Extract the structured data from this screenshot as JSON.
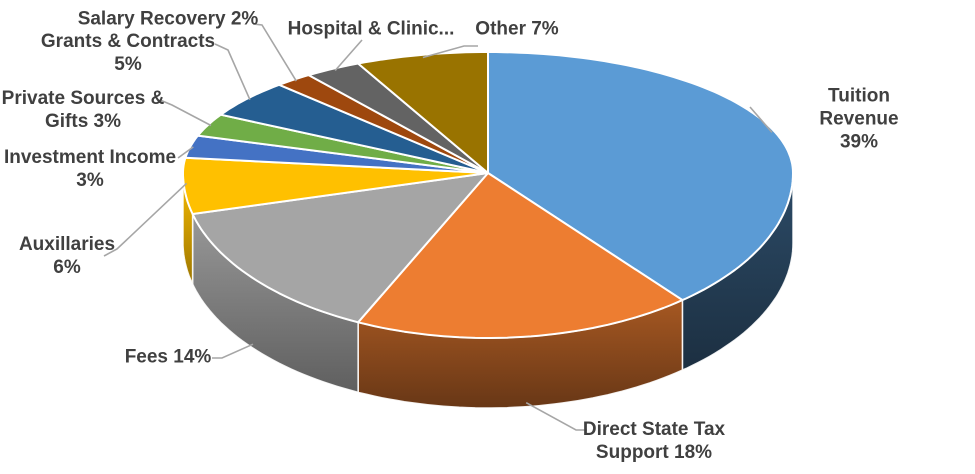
{
  "page": {
    "background": "#FFFFFF"
  },
  "chart_data": {
    "type": "pie",
    "style": "3d-pie",
    "legend": "none",
    "units": "percent",
    "total": 100,
    "direction": "clockwise",
    "start_angle_deg": 0,
    "label_color": "#404040",
    "leader_line_color": "#A6A6A6",
    "slices": [
      {
        "label": "Tuition Revenue",
        "value": 39,
        "display": "Tuition Revenue 39%",
        "color": "#5B9BD5"
      },
      {
        "label": "Direct State Tax Support",
        "value": 18,
        "display": "Direct State Tax\nSupport 18%",
        "color": "#ED7D31"
      },
      {
        "label": "Fees",
        "value": 14,
        "display": "Fees 14%",
        "color": "#A5A5A5"
      },
      {
        "label": "Auxillaries",
        "value": 6,
        "display": "Auxillaries\n6%",
        "color": "#FFC000"
      },
      {
        "label": "Investment Income",
        "value": 3,
        "display": "Investment Income\n3%",
        "color": "#4472C4"
      },
      {
        "label": "Private Sources & Gifts",
        "value": 3,
        "display": "Private Sources &\nGifts 3%",
        "color": "#70AD47"
      },
      {
        "label": "Grants & Contracts",
        "value": 5,
        "display": "Grants & Contracts\n5%",
        "color": "#255E91"
      },
      {
        "label": "Salary Recovery",
        "value": 2,
        "display": "Salary Recovery 2%",
        "color": "#9E480E"
      },
      {
        "label": "Hospital & Clinic",
        "value": 3,
        "value_estimated": true,
        "display": "Hospital & Clinic...",
        "color": "#636363"
      },
      {
        "label": "Other",
        "value": 7,
        "display": "Other 7%",
        "color": "#997300"
      }
    ]
  }
}
